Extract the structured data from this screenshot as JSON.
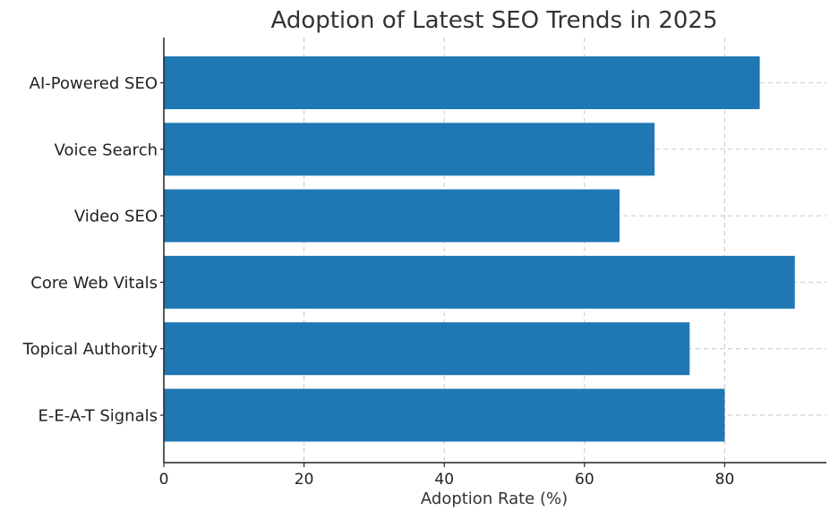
{
  "chart_data": {
    "type": "bar",
    "orientation": "horizontal",
    "title": "Adoption of Latest SEO Trends in 2025",
    "xlabel": "Adoption Rate (%)",
    "ylabel": "",
    "categories": [
      "AI-Powered SEO",
      "Voice Search",
      "Video SEO",
      "Core Web Vitals",
      "Topical Authority",
      "E-E-A-T Signals"
    ],
    "values": [
      85,
      70,
      65,
      90,
      75,
      80
    ],
    "xlim": [
      0,
      94.5
    ],
    "xticks": [
      0,
      20,
      40,
      60,
      80
    ],
    "xtick_labels": [
      "0",
      "20",
      "40",
      "60",
      "80"
    ],
    "grid": true,
    "bar_color": "#1f77b4"
  }
}
